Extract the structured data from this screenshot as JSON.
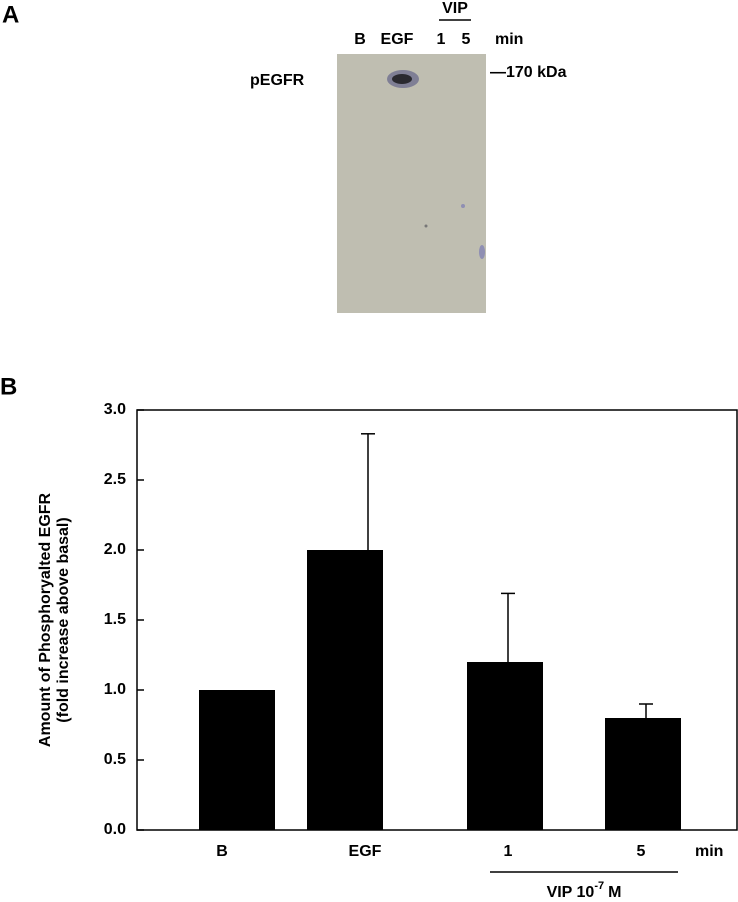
{
  "panel_a": {
    "label": "A",
    "lanes": [
      "B",
      "EGF",
      "1",
      "5"
    ],
    "group": "VIP",
    "unit": "min",
    "protein": "pEGFR",
    "marker": "—170 kDa"
  },
  "chart_data": {
    "type": "bar",
    "label": "B",
    "y_label": [
      "Amount of Phosphoryalted EGFR",
      "(fold increase above basal)"
    ],
    "categories": [
      "B",
      "EGF",
      "1",
      "5"
    ],
    "values": [
      1.0,
      2.0,
      1.2,
      0.8
    ],
    "errors": [
      null,
      0.83,
      0.49,
      0.1
    ],
    "color": "#000000",
    "x_unit": "min",
    "group_label": {
      "text": "VIP 10",
      "superscript": "-7",
      "suffix": "M"
    },
    "ylim": [
      0,
      3
    ],
    "yticks": [
      {
        "value": 0,
        "label": "0.0"
      },
      {
        "value": 0.5,
        "label": "0.5"
      },
      {
        "value": 1,
        "label": "1.0"
      },
      {
        "value": 1.5,
        "label": "1.5"
      },
      {
        "value": 2,
        "label": "2.0"
      },
      {
        "value": 2.5,
        "label": "2.5"
      },
      {
        "value": 3,
        "label": "3.0"
      }
    ]
  }
}
